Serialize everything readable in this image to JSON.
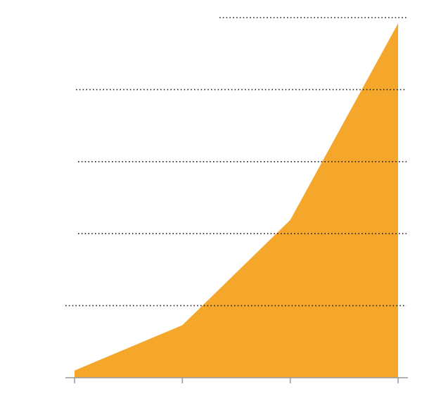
{
  "chart_data": {
    "type": "area",
    "categories": [
      null,
      null,
      null,
      null
    ],
    "values": [
      0.1,
      0.73,
      2.19,
      4.92
    ],
    "color": "#f4a72a",
    "ylim": [
      0,
      5
    ],
    "yticks": [
      1,
      2,
      3,
      4,
      5
    ],
    "grid": true
  }
}
